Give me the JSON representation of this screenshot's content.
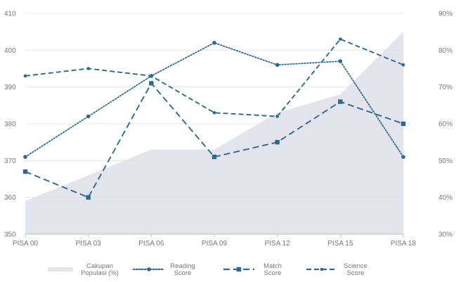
{
  "chart_data": {
    "type": "line",
    "title": "",
    "categories": [
      "PISA 00",
      "PISA 03",
      "PISA 06",
      "PISA 09",
      "PISA 12",
      "PISA 15",
      "PISA 18"
    ],
    "left_axis": {
      "range": [
        350,
        410
      ],
      "ticks": [
        "350",
        "360",
        "370",
        "380",
        "390",
        "400",
        "410"
      ]
    },
    "right_axis": {
      "range": [
        30,
        90
      ],
      "unit": "%",
      "ticks": [
        "30%",
        "40%",
        "50%",
        "60%",
        "70%",
        "80%",
        "90%"
      ]
    },
    "grid": true,
    "legend_position": "bottom",
    "series": [
      {
        "name": "Cakupan Populasi (%)",
        "legend_lines": [
          "Cakupan",
          "Populasi (%)"
        ],
        "kind": "area",
        "axis": "right",
        "color": "#e4e4ec",
        "values": [
          39,
          46,
          53,
          53,
          63,
          68,
          85
        ]
      },
      {
        "name": "Reading Score",
        "legend_lines": [
          "Reading",
          "Score"
        ],
        "kind": "line",
        "style": "dotted",
        "marker": "circle",
        "axis": "left",
        "color": "#2b6a95",
        "values": [
          371,
          382,
          393,
          402,
          396,
          397,
          371
        ]
      },
      {
        "name": "Match Score",
        "legend_lines": [
          "Match",
          "Score"
        ],
        "kind": "line",
        "style": "long-dash",
        "marker": "square",
        "axis": "left",
        "color": "#2b6a95",
        "values": [
          367,
          360,
          391,
          371,
          375,
          386,
          380
        ]
      },
      {
        "name": "Science Score",
        "legend_lines": [
          "Science",
          "Score"
        ],
        "kind": "line",
        "style": "dash",
        "marker": "small-circle",
        "axis": "left",
        "color": "#2b6a95",
        "values": [
          393,
          395,
          393,
          383,
          382,
          403,
          396
        ]
      }
    ]
  }
}
